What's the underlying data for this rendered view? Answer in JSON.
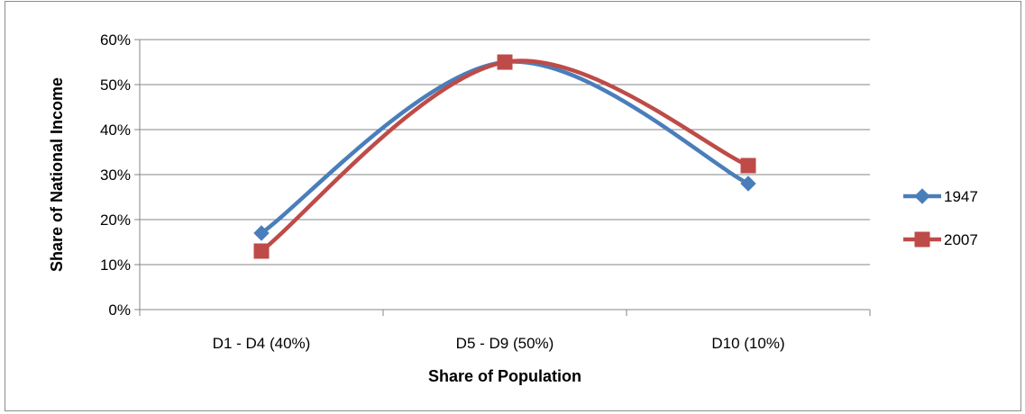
{
  "chart_data": {
    "type": "line",
    "smooth": true,
    "categories": [
      "D1 - D4 (40%)",
      "D5 - D9 (50%)",
      "D10 (10%)"
    ],
    "series": [
      {
        "name": "1947",
        "values": [
          17,
          55,
          28
        ],
        "color": "#4a7ebb",
        "marker": "diamond"
      },
      {
        "name": "2007",
        "values": [
          13,
          55,
          32
        ],
        "color": "#be4b48",
        "marker": "square"
      }
    ],
    "xlabel": "Share of Population",
    "ylabel": "Share of National Income",
    "ylim": [
      0,
      60
    ],
    "ytick_values": [
      0,
      10,
      20,
      30,
      40,
      50,
      60
    ],
    "ytick_labels": [
      "0%",
      "10%",
      "20%",
      "30%",
      "40%",
      "50%",
      "60%"
    ],
    "grid": "horizontal",
    "legend_position": "right"
  }
}
